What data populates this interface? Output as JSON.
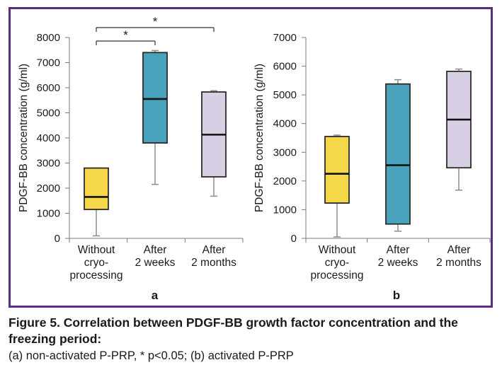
{
  "chart_data": [
    {
      "panel_label": "a",
      "type": "box",
      "ylabel": "PDGF-BB concentration (g/ml)",
      "ylim": [
        0,
        8000
      ],
      "yticks": [
        0,
        1000,
        2000,
        3000,
        4000,
        5000,
        6000,
        7000,
        8000
      ],
      "categories": [
        [
          "Without",
          "cryo-",
          "processing"
        ],
        [
          "After",
          "2 weeks"
        ],
        [
          "After",
          "2 months"
        ]
      ],
      "boxes": [
        {
          "min": 100,
          "q1": 1150,
          "median": 1650,
          "q3": 2800,
          "max": 2800,
          "color": "#f5d84a"
        },
        {
          "min": 2150,
          "q1": 3800,
          "median": 5550,
          "q3": 7400,
          "max": 7480,
          "color": "#4aa3bd"
        },
        {
          "min": 1680,
          "q1": 2450,
          "median": 4130,
          "q3": 5830,
          "max": 5880,
          "color": "#d9cfe4"
        }
      ],
      "significance": [
        {
          "from": 0,
          "to": 1,
          "label": "*"
        },
        {
          "from": 0,
          "to": 2,
          "label": "*"
        }
      ],
      "grid": false
    },
    {
      "panel_label": "b",
      "type": "box",
      "ylabel": "PDGF-BB concentration (g/ml)",
      "ylim": [
        0,
        7000
      ],
      "yticks": [
        0,
        1000,
        2000,
        3000,
        4000,
        5000,
        6000,
        7000
      ],
      "categories": [
        [
          "Without",
          "cryo-",
          "processing"
        ],
        [
          "After",
          "2 weeks"
        ],
        [
          "After",
          "2 months"
        ]
      ],
      "boxes": [
        {
          "min": 50,
          "q1": 1230,
          "median": 2250,
          "q3": 3550,
          "max": 3600,
          "color": "#f5d84a"
        },
        {
          "min": 250,
          "q1": 500,
          "median": 2550,
          "q3": 5380,
          "max": 5530,
          "color": "#4aa3bd"
        },
        {
          "min": 1680,
          "q1": 2460,
          "median": 4140,
          "q3": 5820,
          "max": 5900,
          "color": "#d9cfe4"
        }
      ],
      "significance": [],
      "grid": false
    }
  ],
  "caption": {
    "title": "Figure 5. Correlation between PDGF-BB growth factor concentration and the freezing period:",
    "note": "(a) non-activated P-PRP, * p<0.05; (b) activated P-PRP"
  }
}
